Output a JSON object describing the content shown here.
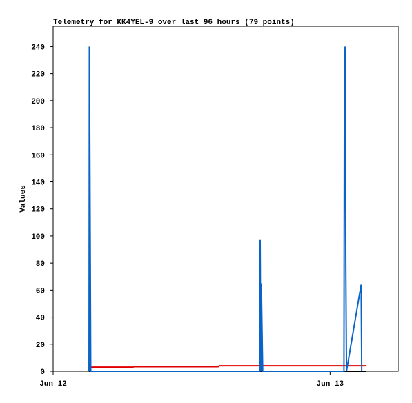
{
  "chart_data": {
    "type": "line",
    "title": "Telemetry for KK4YEL-9 over last 96 hours (79 points)",
    "y_label": "Values",
    "xlim": [
      0,
      29.9
    ],
    "xticks": [
      {
        "value": 0,
        "label": "Jun 12"
      },
      {
        "value": 24,
        "label": "Jun 13"
      }
    ],
    "ylim": [
      0,
      255
    ],
    "yticks": [
      0,
      20,
      40,
      60,
      80,
      100,
      120,
      140,
      160,
      180,
      200,
      220,
      240
    ],
    "series": [
      {
        "color": "#000000",
        "x": [
          3.1,
          27.1
        ],
        "values": [
          0,
          0
        ]
      },
      {
        "color": "#e00000",
        "x": [
          3.1,
          6.9,
          7.0,
          14.3,
          14.4,
          27.1,
          27.1
        ],
        "values": [
          3,
          3,
          3.3,
          3.3,
          4,
          4,
          3.5
        ]
      },
      {
        "color": "#0a64c8",
        "x": [
          3.11,
          3.14,
          3.2,
          3.26,
          17.9,
          17.94,
          18.0,
          18.04,
          18.1,
          18.16,
          25.2,
          25.24,
          25.3,
          25.36,
          25.42,
          26.69,
          26.74
        ],
        "values": [
          0,
          240,
          121,
          0,
          0,
          97,
          0,
          65,
          32,
          0,
          0,
          200,
          240,
          81,
          0,
          64,
          0
        ]
      }
    ]
  }
}
